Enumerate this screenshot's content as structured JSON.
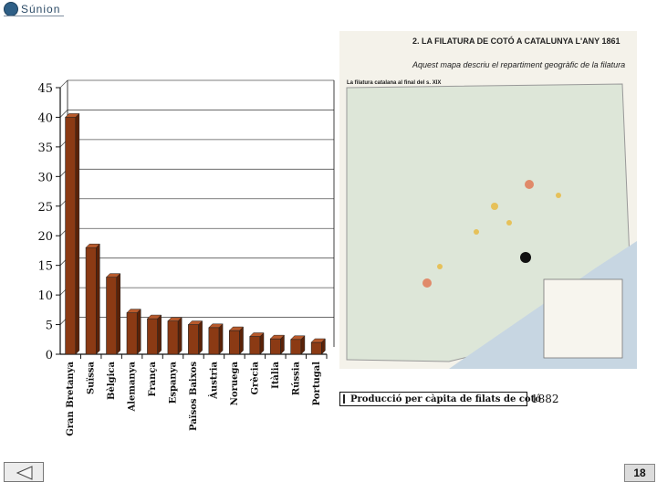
{
  "logo": {
    "text": "Súnion"
  },
  "chart_data": {
    "type": "bar",
    "categories": [
      "Gran Bretanya",
      "Suïssa",
      "Bèlgica",
      "Alemanya",
      "França",
      "Espanya",
      "Països Baixos",
      "Àustria",
      "Noruega",
      "Grècia",
      "Itàlia",
      "Rússia",
      "Portugal"
    ],
    "values": [
      40,
      18,
      13,
      7,
      6,
      5.6,
      5,
      4.5,
      4,
      3,
      2.6,
      2.5,
      2
    ],
    "ylim": [
      0,
      45
    ],
    "yticks": [
      "0",
      "5",
      "10",
      "15",
      "20",
      "25",
      "30",
      "35",
      "40",
      "45"
    ],
    "legend": {
      "label": "Producció per càpita de filats de cotó",
      "position": "bottom-right"
    },
    "annotation": "1882",
    "colors": {
      "bar_front": "#8b3a14",
      "bar_side": "#5a2208",
      "bar_top": "#b85a2c"
    },
    "grid": true
  },
  "map": {
    "title": "2. LA FILATURA DE COTÓ A CATALUNYA L'ANY 1861",
    "subtitle": "Aquest mapa descriu el repartiment geogràfic de la filatura",
    "inset_title": "La filatura catalana al final del s. XIX"
  },
  "page": {
    "number": "18"
  }
}
